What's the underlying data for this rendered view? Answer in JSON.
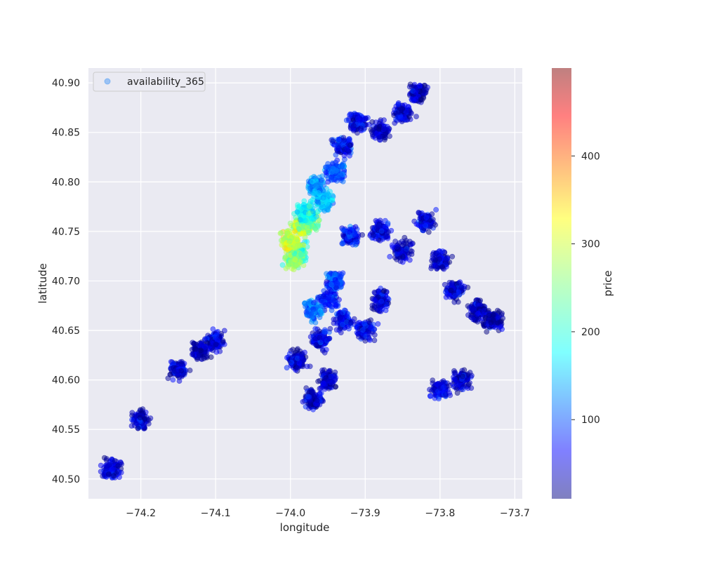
{
  "chart_data": {
    "type": "scatter",
    "title": "",
    "xlabel": "longitude",
    "ylabel": "latitude",
    "xlim": [
      -74.27,
      -73.69
    ],
    "ylim": [
      40.48,
      40.915
    ],
    "xticks": [
      -74.2,
      -74.1,
      -74.0,
      -73.9,
      -73.8,
      -73.7
    ],
    "xtick_labels": [
      "−74.2",
      "−74.1",
      "−74.0",
      "−73.9",
      "−73.8",
      "−73.7"
    ],
    "yticks": [
      40.5,
      40.55,
      40.6,
      40.65,
      40.7,
      40.75,
      40.8,
      40.85,
      40.9
    ],
    "ytick_labels": [
      "40.50",
      "40.55",
      "40.60",
      "40.65",
      "40.70",
      "40.75",
      "40.80",
      "40.85",
      "40.90"
    ],
    "grid": true,
    "legend": {
      "label": "availability_365",
      "placement": "top-left"
    },
    "colorbar": {
      "label": "price",
      "colormap": "jet",
      "range": [
        10,
        500
      ],
      "ticks": [
        100,
        200,
        300,
        400
      ],
      "tick_labels": [
        "100",
        "200",
        "300",
        "400"
      ]
    },
    "series": [
      {
        "name": "availability_365",
        "points": [
          {
            "x": -73.99,
            "y": 40.73,
            "price": 240
          },
          {
            "x": -73.985,
            "y": 40.755,
            "price": 300
          },
          {
            "x": -73.975,
            "y": 40.76,
            "price": 260
          },
          {
            "x": -73.995,
            "y": 40.72,
            "price": 280
          },
          {
            "x": -74.0,
            "y": 40.74,
            "price": 320
          },
          {
            "x": -73.98,
            "y": 40.77,
            "price": 220
          },
          {
            "x": -73.955,
            "y": 40.78,
            "price": 190
          },
          {
            "x": -73.965,
            "y": 40.795,
            "price": 170
          },
          {
            "x": -73.94,
            "y": 40.81,
            "price": 130
          },
          {
            "x": -73.93,
            "y": 40.835,
            "price": 90
          },
          {
            "x": -73.91,
            "y": 40.86,
            "price": 80
          },
          {
            "x": -73.88,
            "y": 40.85,
            "price": 70
          },
          {
            "x": -73.85,
            "y": 40.87,
            "price": 70
          },
          {
            "x": -73.83,
            "y": 40.89,
            "price": 60
          },
          {
            "x": -73.94,
            "y": 40.7,
            "price": 120
          },
          {
            "x": -73.95,
            "y": 40.68,
            "price": 110
          },
          {
            "x": -73.97,
            "y": 40.67,
            "price": 150
          },
          {
            "x": -73.93,
            "y": 40.66,
            "price": 90
          },
          {
            "x": -73.96,
            "y": 40.64,
            "price": 80
          },
          {
            "x": -73.99,
            "y": 40.62,
            "price": 70
          },
          {
            "x": -73.95,
            "y": 40.6,
            "price": 60
          },
          {
            "x": -73.97,
            "y": 40.58,
            "price": 70
          },
          {
            "x": -73.9,
            "y": 40.65,
            "price": 80
          },
          {
            "x": -73.88,
            "y": 40.68,
            "price": 70
          },
          {
            "x": -73.92,
            "y": 40.745,
            "price": 100
          },
          {
            "x": -73.88,
            "y": 40.75,
            "price": 80
          },
          {
            "x": -73.85,
            "y": 40.73,
            "price": 70
          },
          {
            "x": -73.82,
            "y": 40.76,
            "price": 80
          },
          {
            "x": -73.8,
            "y": 40.72,
            "price": 70
          },
          {
            "x": -73.78,
            "y": 40.69,
            "price": 70
          },
          {
            "x": -73.75,
            "y": 40.67,
            "price": 60
          },
          {
            "x": -73.73,
            "y": 40.66,
            "price": 60
          },
          {
            "x": -73.8,
            "y": 40.59,
            "price": 80
          },
          {
            "x": -73.77,
            "y": 40.6,
            "price": 70
          },
          {
            "x": -74.1,
            "y": 40.64,
            "price": 70
          },
          {
            "x": -74.12,
            "y": 40.63,
            "price": 60
          },
          {
            "x": -74.15,
            "y": 40.61,
            "price": 70
          },
          {
            "x": -74.2,
            "y": 40.56,
            "price": 70
          },
          {
            "x": -74.24,
            "y": 40.51,
            "price": 80
          }
        ]
      }
    ]
  }
}
